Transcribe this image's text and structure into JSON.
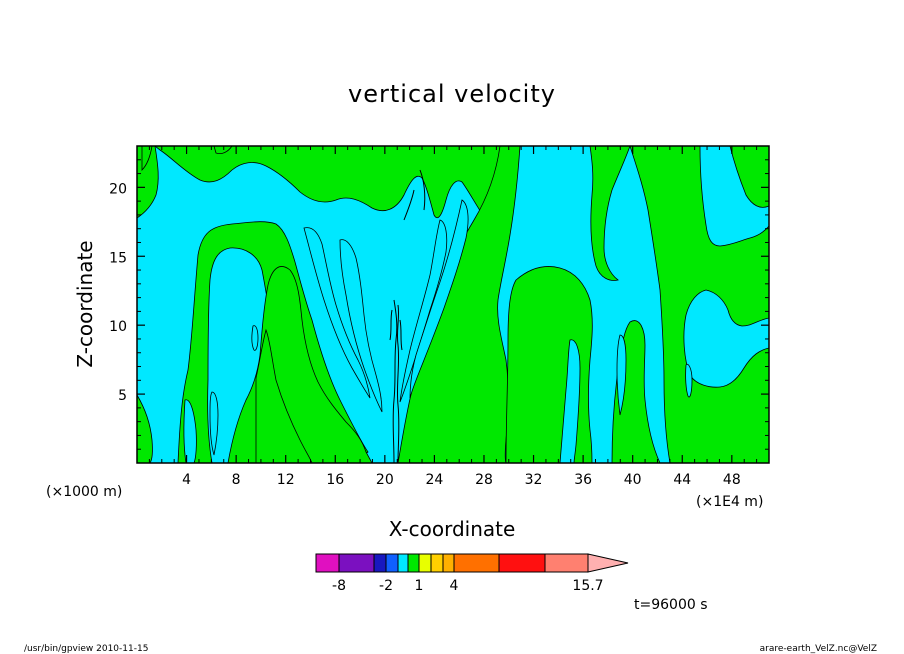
{
  "chart_data": {
    "type": "contour",
    "title": "vertical velocity",
    "xlabel": "X-coordinate",
    "ylabel": "Z-coordinate",
    "x_unit_left": "(×1000 m)",
    "x_unit_right": "(×1E4 m)",
    "xlim": [
      0,
      51
    ],
    "ylim": [
      0,
      23
    ],
    "xticks": [
      4,
      8,
      12,
      16,
      20,
      24,
      28,
      32,
      36,
      40,
      44,
      48
    ],
    "yticks": [
      5,
      10,
      15,
      20
    ],
    "time_label": "t=96000 s",
    "colorbar": {
      "levels_shown": [
        "-8",
        "-2",
        "1",
        "4",
        "15.7"
      ],
      "level_values": [
        -8,
        -2,
        1,
        4,
        15.7
      ],
      "colors": [
        "#e010c0",
        "#7b10c0",
        "#1818c0",
        "#1060ff",
        "#00e8ff",
        "#00e800",
        "#e8ff00",
        "#ffd000",
        "#ffb000",
        "#ff7000",
        "#ff1010",
        "#ff8070",
        "#ffb0b0"
      ]
    },
    "fill_colors": {
      "negative": "#00e8ff",
      "positive": "#00e800"
    }
  },
  "footer": {
    "left": "/usr/bin/gpview   2010-11-15",
    "right": "arare-earth_VelZ.nc@VelZ"
  }
}
